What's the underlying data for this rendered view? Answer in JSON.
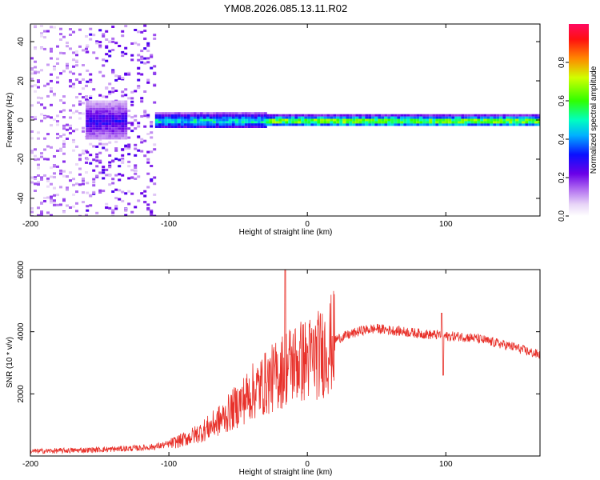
{
  "chart_data": [
    {
      "type": "heatmap",
      "title": "YM08.2026.085.13.11.R02",
      "xlabel": "Height of straight line (km)",
      "ylabel": "Frequency (Hz)",
      "xlim": [
        -200,
        168
      ],
      "ylim": [
        -49,
        49
      ],
      "xticks": [
        -200,
        -100,
        0,
        100
      ],
      "yticks": [
        -40,
        -20,
        0,
        20,
        40
      ],
      "colorbar": {
        "label": "Normalized spectral amplitude",
        "range": [
          0,
          1
        ],
        "ticks": [
          "0.0",
          "0.2",
          "0.4",
          "0.6",
          "0.8"
        ]
      },
      "bands": [
        {
          "x_start": -200,
          "x_end": -160,
          "spread_hz": 49,
          "amplitude": 0.15,
          "note": "broadband noise"
        },
        {
          "x_start": -160,
          "x_end": -110,
          "spread_hz": 45,
          "amplitude": 0.2,
          "note": "scattered noise"
        },
        {
          "x_start": -160,
          "x_end": -130,
          "spread_hz": 10,
          "amplitude": 0.3,
          "note": "emerging band"
        },
        {
          "x_start": -110,
          "x_end": -30,
          "spread_hz": 4,
          "amplitude": 0.55,
          "note": "band at ~0-3 Hz"
        },
        {
          "x_start": -30,
          "x_end": 168,
          "spread_hz": 3,
          "amplitude": 0.75,
          "note": "stable tone at ~0 Hz"
        }
      ]
    },
    {
      "type": "line",
      "xlabel": "Height of straight line (km)",
      "ylabel": "SNR (10 * v/v)",
      "xlim": [
        -200,
        168
      ],
      "ylim": [
        0,
        6000
      ],
      "xticks": [
        -200,
        -100,
        0,
        100
      ],
      "yticks": [
        2000,
        4000,
        6000
      ],
      "color": "#e8312a",
      "series": [
        {
          "name": "SNR",
          "x": [
            -200,
            -180,
            -160,
            -140,
            -120,
            -110,
            -100,
            -90,
            -80,
            -70,
            -60,
            -50,
            -40,
            -30,
            -20,
            -15,
            -10,
            -5,
            0,
            10,
            15,
            20,
            30,
            40,
            50,
            60,
            70,
            80,
            90,
            97,
            100,
            110,
            120,
            130,
            140,
            150,
            160,
            168
          ],
          "values": [
            150,
            170,
            190,
            220,
            260,
            300,
            380,
            520,
            700,
            950,
            1250,
            1650,
            2050,
            2350,
            2650,
            2900,
            3000,
            3050,
            3100,
            3300,
            3500,
            3750,
            3900,
            4050,
            4100,
            4050,
            4000,
            3950,
            3900,
            3900,
            3850,
            3850,
            3800,
            3700,
            3600,
            3500,
            3350,
            3250
          ]
        }
      ],
      "annotations": [
        {
          "x": -16,
          "value": 6000,
          "note": "narrow spike"
        },
        {
          "x": 97,
          "value": 4600,
          "note": "spike"
        },
        {
          "x": 98,
          "value": 2600,
          "note": "dip"
        }
      ]
    }
  ]
}
